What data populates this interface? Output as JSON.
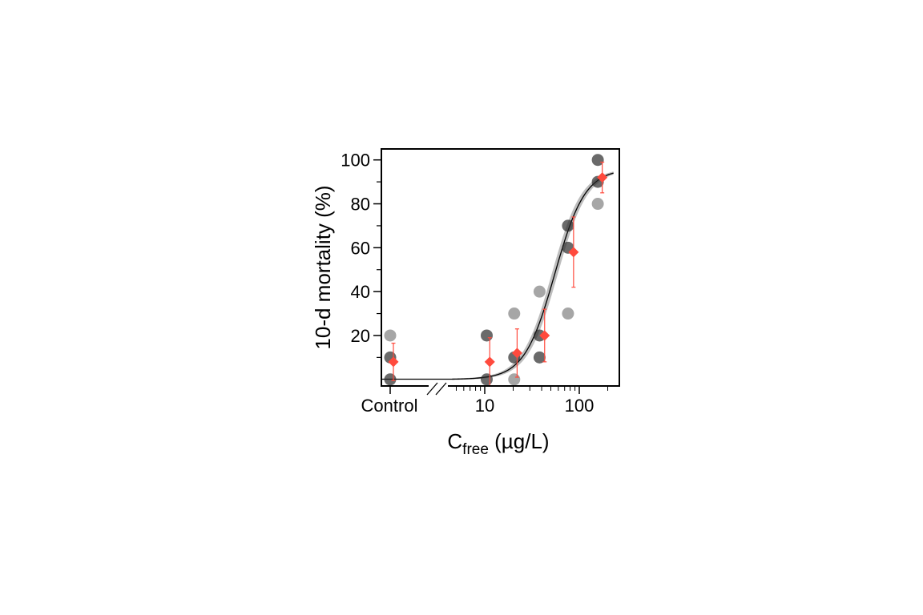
{
  "chart_data": {
    "type": "scatter",
    "ylabel": "10-d mortality (%)",
    "xlabel": {
      "main": "C",
      "subscript": "free",
      "rest": " (µg/L)"
    },
    "x_scale": "log",
    "x_axis_break": true,
    "xlim": [
      4.5,
      230
    ],
    "ylim": [
      -3,
      105
    ],
    "x_ticks": [
      {
        "label": "Control",
        "x": "control"
      },
      {
        "label": "10",
        "x": 10
      },
      {
        "label": "100",
        "x": 100
      }
    ],
    "y_ticks": [
      20,
      40,
      60,
      80,
      100
    ],
    "colors": {
      "replicate_dark": "#2b2b2b",
      "replicate_light": "#808080",
      "mean": "#ff4a3d",
      "fit": "#000000",
      "ci_band": "#bdbdbd"
    },
    "series": [
      {
        "kind": "replicates",
        "points": [
          {
            "x": "control",
            "y": 20
          },
          {
            "x": "control",
            "y": 10
          },
          {
            "x": "control",
            "y": 0
          },
          {
            "x": 10.5,
            "y": 20
          },
          {
            "x": 10.5,
            "y": 0
          },
          {
            "x": 20.5,
            "y": 30
          },
          {
            "x": 20.5,
            "y": 10
          },
          {
            "x": 20.5,
            "y": 0
          },
          {
            "x": 38,
            "y": 40
          },
          {
            "x": 38,
            "y": 20
          },
          {
            "x": 38,
            "y": 10
          },
          {
            "x": 76,
            "y": 70
          },
          {
            "x": 76,
            "y": 60
          },
          {
            "x": 76,
            "y": 30
          },
          {
            "x": 157,
            "y": 100
          },
          {
            "x": 157,
            "y": 90
          },
          {
            "x": 157,
            "y": 80
          }
        ]
      },
      {
        "kind": "means",
        "points": [
          {
            "x": "control",
            "y": 8,
            "err": 8.5
          },
          {
            "x": 11.3,
            "y": 8,
            "err": 11
          },
          {
            "x": 22,
            "y": 12,
            "err": 11
          },
          {
            "x": 43,
            "y": 20,
            "err": 12
          },
          {
            "x": 87,
            "y": 58,
            "err": 16
          },
          {
            "x": 175,
            "y": 92,
            "err": 7
          }
        ]
      },
      {
        "kind": "fit",
        "model": "log-logistic",
        "lower": 0,
        "upper": 96,
        "ec50": 55,
        "slope": 2.7,
        "x_range": [
          4.5,
          230
        ],
        "ci_halfwidth": 4.5
      }
    ]
  }
}
